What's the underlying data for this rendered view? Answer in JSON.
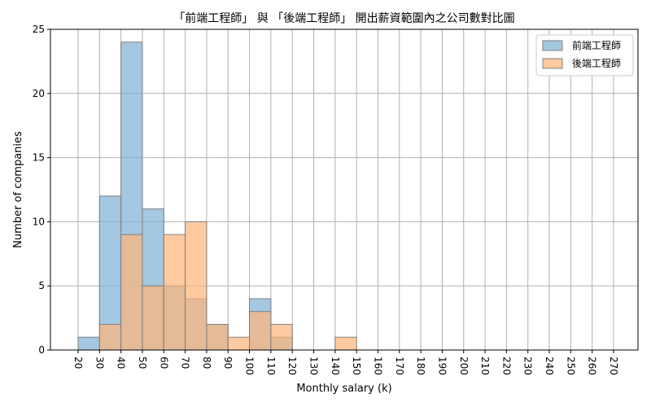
{
  "chart_data": {
    "type": "bar",
    "title": "「前端工程師」 與 「後端工程師」 開出薪資範圍內之公司數對比圖",
    "xlabel": "Monthly salary (k)",
    "ylabel": "Number of companies",
    "x_ticks": [
      "20",
      "30",
      "40",
      "50",
      "60",
      "70",
      "80",
      "90",
      "100",
      "110",
      "120",
      "130",
      "140",
      "150",
      "160",
      "170",
      "180",
      "190",
      "200",
      "210",
      "220",
      "230",
      "240",
      "250",
      "260",
      "270"
    ],
    "bin_edges": [
      20,
      30,
      40,
      50,
      60,
      70,
      80,
      90,
      100,
      110,
      120,
      130,
      140,
      150,
      160,
      170,
      180,
      190,
      200,
      210,
      220,
      230,
      240,
      250,
      260,
      270
    ],
    "ylim": [
      0,
      25
    ],
    "y_ticks": [
      0,
      5,
      10,
      15,
      20,
      25
    ],
    "grid": true,
    "legend_position": "top-right",
    "series": [
      {
        "name": "前端工程師",
        "color": "#7fb0d6",
        "values": [
          1,
          12,
          24,
          11,
          5,
          4,
          2,
          0,
          4,
          1,
          0,
          0,
          0,
          0,
          0,
          0,
          0,
          0,
          0,
          0,
          0,
          0,
          0,
          0,
          0
        ]
      },
      {
        "name": "後端工程師",
        "color": "#ffb477",
        "values": [
          0,
          2,
          9,
          5,
          9,
          10,
          2,
          1,
          3,
          2,
          0,
          0,
          1,
          0,
          0,
          0,
          0,
          0,
          0,
          0,
          0,
          0,
          0,
          0,
          0
        ]
      }
    ]
  }
}
